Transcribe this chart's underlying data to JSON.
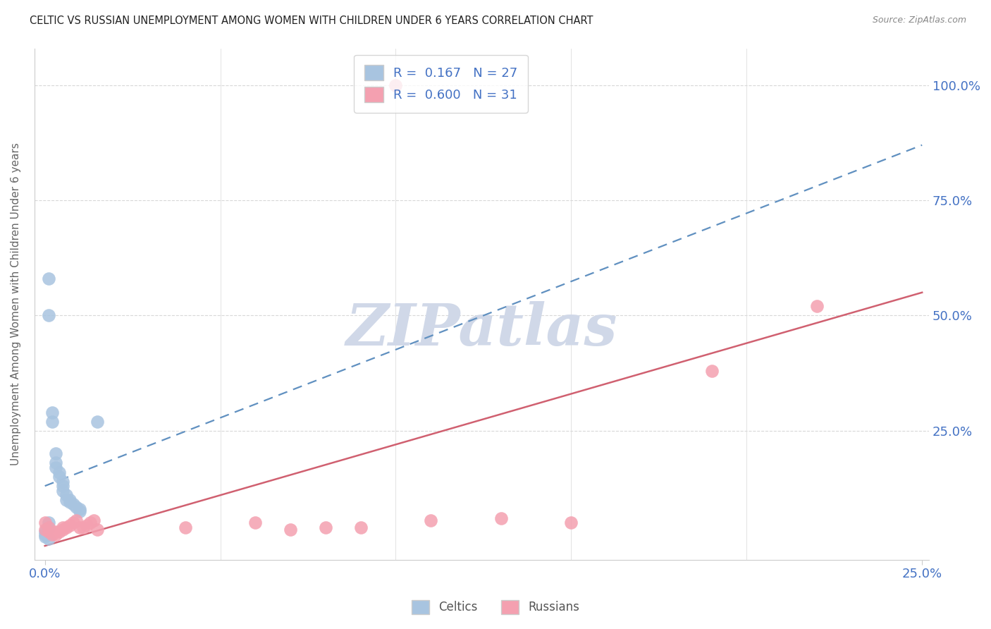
{
  "title": "CELTIC VS RUSSIAN UNEMPLOYMENT AMONG WOMEN WITH CHILDREN UNDER 6 YEARS CORRELATION CHART",
  "source": "Source: ZipAtlas.com",
  "ylabel_left": "Unemployment Among Women with Children Under 6 years",
  "background_color": "#ffffff",
  "grid_color": "#d8d8d8",
  "axis_label_color": "#4472c4",
  "title_color": "#222222",
  "source_color": "#888888",
  "celtic_dot_color": "#a8c4e0",
  "russian_dot_color": "#f4a0b0",
  "celtic_line_color": "#6090c0",
  "russian_line_color": "#d06070",
  "celtics_x": [
    0.001,
    0.001,
    0.002,
    0.002,
    0.003,
    0.003,
    0.003,
    0.004,
    0.004,
    0.005,
    0.005,
    0.005,
    0.006,
    0.006,
    0.007,
    0.007,
    0.008,
    0.009,
    0.01,
    0.01,
    0.015,
    0.001,
    0.001,
    0.0,
    0.0,
    0.0,
    0.001
  ],
  "celtics_y": [
    0.58,
    0.5,
    0.29,
    0.27,
    0.2,
    0.18,
    0.17,
    0.16,
    0.15,
    0.14,
    0.13,
    0.12,
    0.11,
    0.1,
    0.1,
    0.095,
    0.09,
    0.085,
    0.08,
    0.075,
    0.27,
    0.05,
    0.04,
    0.03,
    0.025,
    0.02,
    0.015
  ],
  "russians_x": [
    0.1,
    0.0,
    0.0,
    0.001,
    0.001,
    0.002,
    0.003,
    0.003,
    0.004,
    0.005,
    0.005,
    0.006,
    0.007,
    0.008,
    0.009,
    0.01,
    0.011,
    0.012,
    0.013,
    0.014,
    0.015,
    0.04,
    0.06,
    0.07,
    0.08,
    0.09,
    0.11,
    0.13,
    0.15,
    0.19,
    0.22
  ],
  "russians_y": [
    1.0,
    0.05,
    0.035,
    0.04,
    0.03,
    0.025,
    0.025,
    0.03,
    0.03,
    0.04,
    0.035,
    0.04,
    0.045,
    0.05,
    0.055,
    0.04,
    0.04,
    0.045,
    0.05,
    0.055,
    0.035,
    0.04,
    0.05,
    0.035,
    0.04,
    0.04,
    0.055,
    0.06,
    0.05,
    0.38,
    0.52
  ],
  "celtic_line_x": [
    0.0,
    0.25
  ],
  "celtic_line_y": [
    0.13,
    0.87
  ],
  "russian_line_x": [
    0.0,
    0.25
  ],
  "russian_line_y": [
    0.0,
    0.55
  ],
  "xlim": [
    -0.003,
    0.252
  ],
  "ylim": [
    -0.03,
    1.08
  ],
  "xticks": [
    0.0,
    0.25
  ],
  "yticks_right": [
    0.25,
    0.5,
    0.75,
    1.0
  ],
  "ytick_labels_right": [
    "25.0%",
    "50.0%",
    "75.0%",
    "100.0%"
  ],
  "xtick_labels": [
    "0.0%",
    "25.0%"
  ],
  "dot_size": 180,
  "watermark_text": "ZIPatlas",
  "watermark_color": "#d0d8e8",
  "legend_label_celtic": "R =  0.167   N = 27",
  "legend_label_russian": "R =  0.600   N = 31",
  "bottom_legend_celtic": "Celtics",
  "bottom_legend_russian": "Russians"
}
